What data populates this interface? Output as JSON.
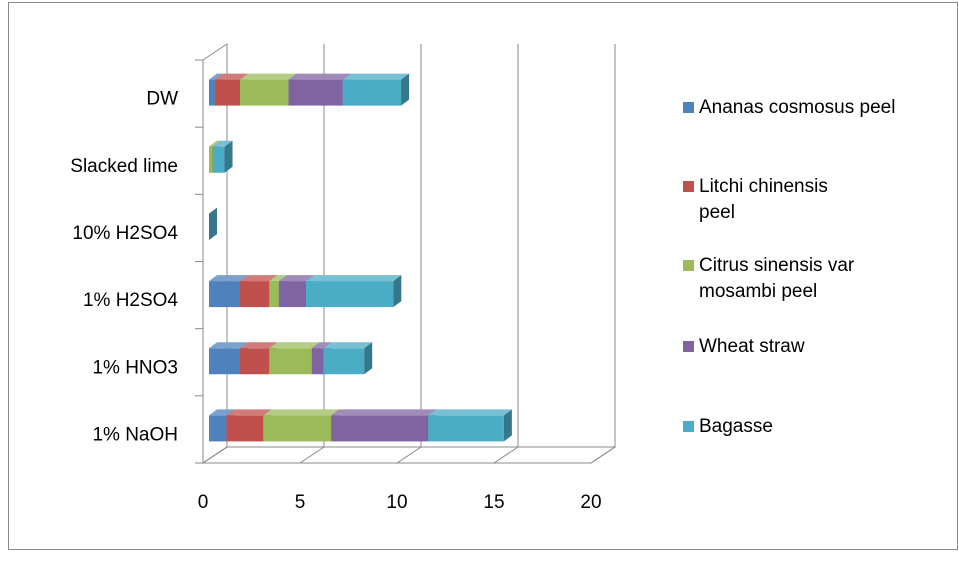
{
  "chart_data": {
    "type": "bar3d_stacked_horizontal",
    "categories": [
      "1% NaOH",
      "1% HNO3",
      "1% H2SO4",
      "10% H2SO4",
      "Slacked lime",
      "DW"
    ],
    "series": [
      {
        "name": "Ananas cosmosus peel",
        "color": "#4f81bd",
        "values": [
          0.9,
          1.6,
          1.6,
          0,
          0,
          0.3
        ]
      },
      {
        "name": "Litchi chinensis peel",
        "color": "#c0504d",
        "values": [
          1.9,
          1.5,
          1.5,
          0,
          0,
          1.3
        ]
      },
      {
        "name": "Citrus sinensis var mosambi peel",
        "color": "#9bbb59",
        "values": [
          3.5,
          2.2,
          0.5,
          0,
          0.2,
          2.5
        ]
      },
      {
        "name": "Wheat straw",
        "color": "#8064a2",
        "values": [
          5.0,
          0.6,
          1.4,
          0,
          0,
          2.8
        ]
      },
      {
        "name": "Bagasse",
        "color": "#4bacc6",
        "values": [
          3.9,
          2.1,
          4.5,
          0,
          0.6,
          3.0
        ]
      }
    ],
    "xlim": [
      0,
      20
    ],
    "xticks": [
      0,
      5,
      10,
      15,
      20
    ],
    "grid": true,
    "legend": "right"
  }
}
